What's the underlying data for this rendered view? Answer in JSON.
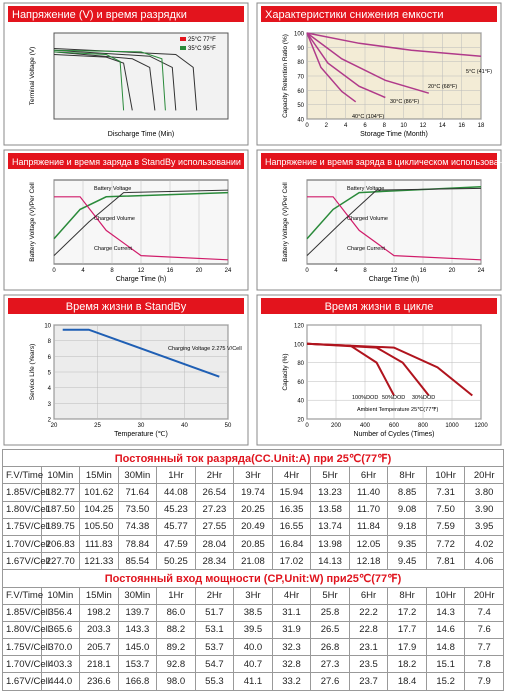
{
  "panels": [
    {
      "title": "Напряжение (V) и время разрядки",
      "y_label": "Terminal Voltage (V)",
      "x_label": "Discharge Time (Min)",
      "legend": [
        "25°C 77°F",
        "35°C 95°F"
      ]
    },
    {
      "title": "Характеристики снижения емкости",
      "y_label": "Capacity Retention Ratio (%)",
      "yticks": [
        "100",
        "90",
        "80",
        "70",
        "60",
        "50",
        "40"
      ],
      "xticks": [
        "0",
        "2",
        "4",
        "6",
        "8",
        "10",
        "12",
        "14",
        "16",
        "18"
      ],
      "x_label": "Storage Time (Month)",
      "annotations": [
        "5°C (41°F)",
        "20°C (68°F)",
        "30°C (86°F)",
        "40°C (104°F)"
      ]
    },
    {
      "title": "Напряжение и время заряда в StandBy использовании",
      "y_label": "Battery Voltage (V)/Per Cell",
      "xticks": [
        "0",
        "4",
        "8",
        "12",
        "16",
        "20",
        "24"
      ],
      "x_label": "Charge Time (h)",
      "annotations": [
        "Battery Voltage",
        "Charged Volume",
        "Charge Current"
      ]
    },
    {
      "title": "Напряжение и время заряда в циклическом использовании",
      "y_label": "Battery Voltage (V)/Per Cell",
      "xticks": [
        "0",
        "4",
        "8",
        "12",
        "16",
        "20",
        "24"
      ],
      "x_label": "Charge Time (h)",
      "annotations": [
        "Battery Voltage",
        "Charged Volume",
        "Charge Current"
      ]
    },
    {
      "title": "Время жизни в StandBy",
      "y_label": "Service Life (Years)",
      "yticks": [
        "10",
        "8",
        "6",
        "5",
        "4",
        "3",
        "2"
      ],
      "xticks": [
        "20",
        "25",
        "30",
        "40",
        "50"
      ],
      "x_label": "Temperature (℃)",
      "annotations": [
        "Charging Voltage 2.275 V/Cell"
      ]
    },
    {
      "title": "Время жизни в цикле",
      "y_label": "Capacity (%)",
      "yticks": [
        "120",
        "100",
        "80",
        "60",
        "40",
        "20"
      ],
      "xticks": [
        "0",
        "200",
        "400",
        "600",
        "800",
        "1000",
        "1200"
      ],
      "x_label": "Number of Cycles (Times)",
      "annotations": [
        "100%DOD",
        "50%DOD",
        "30%DOD",
        "Ambient Temperature 25℃(77℉)"
      ]
    }
  ],
  "tables": [
    {
      "title": "Постоянный ток разряда(CC.Unit:A) при 25℃(77℉)",
      "header": [
        "F.V/Time",
        "10Min",
        "15Min",
        "30Min",
        "1Hr",
        "2Hr",
        "3Hr",
        "4Hr",
        "5Hr",
        "6Hr",
        "8Hr",
        "10Hr",
        "20Hr"
      ],
      "rows": [
        [
          "1.85V/Cell",
          "182.77",
          "101.62",
          "71.64",
          "44.08",
          "26.54",
          "19.74",
          "15.94",
          "13.23",
          "11.40",
          "8.85",
          "7.31",
          "3.80"
        ],
        [
          "1.80V/Cell",
          "187.50",
          "104.25",
          "73.50",
          "45.23",
          "27.23",
          "20.25",
          "16.35",
          "13.58",
          "11.70",
          "9.08",
          "7.50",
          "3.90"
        ],
        [
          "1.75V/Cell",
          "189.75",
          "105.50",
          "74.38",
          "45.77",
          "27.55",
          "20.49",
          "16.55",
          "13.74",
          "11.84",
          "9.18",
          "7.59",
          "3.95"
        ],
        [
          "1.70V/Cell",
          "206.83",
          "111.83",
          "78.84",
          "47.59",
          "28.04",
          "20.85",
          "16.84",
          "13.98",
          "12.05",
          "9.35",
          "7.72",
          "4.02"
        ],
        [
          "1.67V/Cell",
          "227.70",
          "121.33",
          "85.54",
          "50.25",
          "28.34",
          "21.08",
          "17.02",
          "14.13",
          "12.18",
          "9.45",
          "7.81",
          "4.06"
        ]
      ]
    },
    {
      "title": "Постоянный вход мощности (CP,Unit:W) при25℃(77℉)",
      "header": [
        "F.V/Time",
        "10Min",
        "15Min",
        "30Min",
        "1Hr",
        "2Hr",
        "3Hr",
        "4Hr",
        "5Hr",
        "6Hr",
        "8Hr",
        "10Hr",
        "20Hr"
      ],
      "rows": [
        [
          "1.85V/Cell",
          "356.4",
          "198.2",
          "139.7",
          "86.0",
          "51.7",
          "38.5",
          "31.1",
          "25.8",
          "22.2",
          "17.2",
          "14.3",
          "7.4"
        ],
        [
          "1.80V/Cell",
          "365.6",
          "203.3",
          "143.3",
          "88.2",
          "53.1",
          "39.5",
          "31.9",
          "26.5",
          "22.8",
          "17.7",
          "14.6",
          "7.6"
        ],
        [
          "1.75V/Cell",
          "370.0",
          "205.7",
          "145.0",
          "89.2",
          "53.7",
          "40.0",
          "32.3",
          "26.8",
          "23.1",
          "17.9",
          "14.8",
          "7.7"
        ],
        [
          "1.70V/Cell",
          "403.3",
          "218.1",
          "153.7",
          "92.8",
          "54.7",
          "40.7",
          "32.8",
          "27.3",
          "23.5",
          "18.2",
          "15.1",
          "7.8"
        ],
        [
          "1.67V/Cell",
          "444.0",
          "236.6",
          "166.8",
          "98.0",
          "55.3",
          "41.1",
          "33.2",
          "27.6",
          "23.7",
          "18.4",
          "15.2",
          "7.9"
        ]
      ]
    }
  ]
}
